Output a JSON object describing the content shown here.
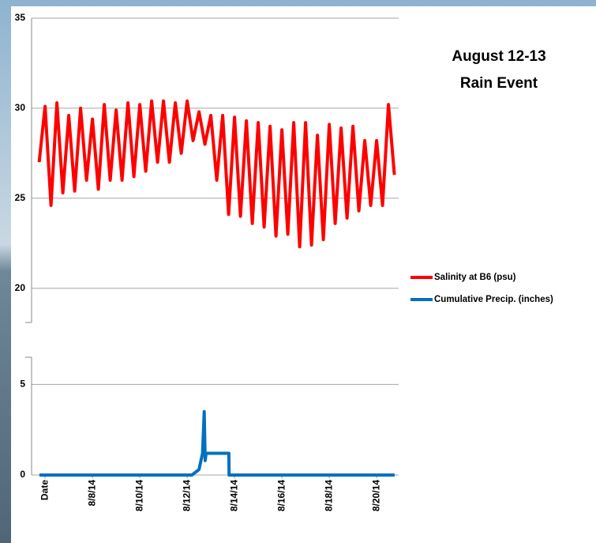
{
  "chart_data": {
    "type": "line",
    "title_lines": [
      "August 12-13",
      "Rain Event"
    ],
    "xlim": [
      5.43,
      20.93
    ],
    "xticks": [
      {
        "value": 6,
        "label": "Date"
      },
      {
        "value": 8,
        "label": "8/8/14"
      },
      {
        "value": 10,
        "label": "8/10/14"
      },
      {
        "value": 12,
        "label": "8/12/14"
      },
      {
        "value": 14,
        "label": "8/14/14"
      },
      {
        "value": 16,
        "label": "8/16/14"
      },
      {
        "value": 18,
        "label": "8/18/14"
      },
      {
        "value": 20,
        "label": "8/20/14"
      }
    ],
    "ylim": [
      18.1,
      35
    ],
    "yticks": [
      20,
      25,
      30,
      35
    ],
    "y2lim": [
      0,
      6.5
    ],
    "y2ticks": [
      0,
      5
    ],
    "grid": true,
    "legend": "right",
    "series": [
      {
        "name": "Salinity at B6 (psu)",
        "color": "#ff0000",
        "x": [
          5.75,
          6.0,
          6.25,
          6.5,
          6.75,
          7.0,
          7.25,
          7.5,
          7.75,
          8.0,
          8.25,
          8.5,
          8.75,
          9.0,
          9.25,
          9.5,
          9.75,
          10.0,
          10.25,
          10.5,
          10.75,
          11.0,
          11.25,
          11.5,
          11.75,
          12.0,
          12.25,
          12.5,
          12.75,
          13.0,
          13.25,
          13.5,
          13.75,
          14.0,
          14.25,
          14.5,
          14.75,
          15.0,
          15.25,
          15.5,
          15.75,
          16.0,
          16.25,
          16.5,
          16.75,
          17.0,
          17.25,
          17.5,
          17.75,
          18.0,
          18.25,
          18.5,
          18.75,
          19.0,
          19.25,
          19.5,
          19.75,
          20.0,
          20.25,
          20.5,
          20.75
        ],
        "values": [
          27,
          30.1,
          24.6,
          30.3,
          25.3,
          29.6,
          25.4,
          30.0,
          26.0,
          29.4,
          25.5,
          30.2,
          26.0,
          29.9,
          26.0,
          30.3,
          26.2,
          30.2,
          26.5,
          30.4,
          27.0,
          30.4,
          27.0,
          30.3,
          27.5,
          30.4,
          28.2,
          29.8,
          28.0,
          29.6,
          26.0,
          29.6,
          24.1,
          29.5,
          24.0,
          29.3,
          23.6,
          29.2,
          23.4,
          29.0,
          22.9,
          28.8,
          23.0,
          29.2,
          22.3,
          29.2,
          22.4,
          28.5,
          22.7,
          29.1,
          23.6,
          28.9,
          23.9,
          29.0,
          24.3,
          28.2,
          24.6,
          28.2,
          24.6,
          30.2,
          26.3
        ]
      },
      {
        "name": "Cumulative Precip. (inches)",
        "color": "#0070c0",
        "axis": "y2",
        "x": [
          5.76,
          12.2,
          12.5,
          12.65,
          12.72,
          12.76,
          12.8,
          13.76,
          13.77,
          20.76
        ],
        "values": [
          0,
          0,
          0.3,
          1.2,
          3.5,
          0.8,
          1.2,
          1.2,
          0,
          0
        ]
      }
    ]
  }
}
